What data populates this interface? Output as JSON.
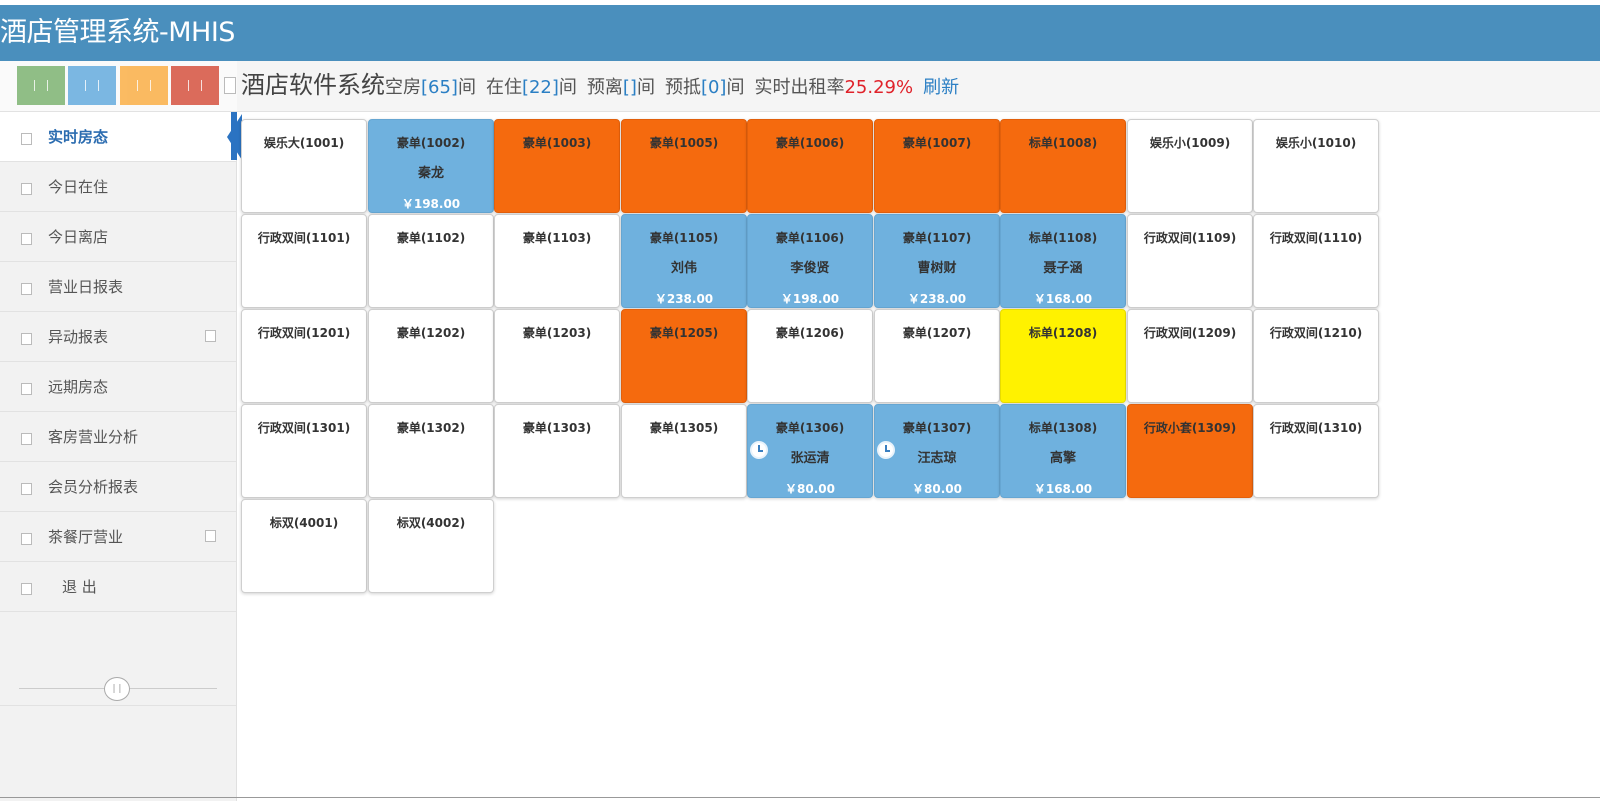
{
  "header": {
    "title": "酒店管理系统-MHIS"
  },
  "shortcuts": [
    {
      "color": "#85b87a",
      "icon": "pause-icon"
    },
    {
      "color": "#6eb0e0",
      "icon": "pause-icon"
    },
    {
      "color": "#fbb451",
      "icon": "pause-icon"
    },
    {
      "color": "#d85c4a",
      "icon": "pause-icon"
    }
  ],
  "nav": {
    "items": [
      {
        "label": "实时房态",
        "active": true,
        "sub": false
      },
      {
        "label": "今日在住",
        "active": false,
        "sub": false
      },
      {
        "label": "今日离店",
        "active": false,
        "sub": false
      },
      {
        "label": "营业日报表",
        "active": false,
        "sub": false
      },
      {
        "label": "异动报表",
        "active": false,
        "sub": true
      },
      {
        "label": "远期房态",
        "active": false,
        "sub": false
      },
      {
        "label": "客房营业分析",
        "active": false,
        "sub": false
      },
      {
        "label": "会员分析报表",
        "active": false,
        "sub": false
      },
      {
        "label": "茶餐厅营业",
        "active": false,
        "sub": true
      },
      {
        "label": "退 出",
        "active": false,
        "sub": false
      }
    ]
  },
  "status": {
    "system_name": "酒店软件系统",
    "vacant_label": "空房",
    "vacant_count": "[65]",
    "occupied_label": "在住",
    "occupied_count": "[22]",
    "departing_label": "预离",
    "departing_count": "[]",
    "arriving_label": "预抵",
    "arriving_count": "[0]",
    "unit": "间",
    "rate_label": "实时出租率",
    "rate_value": "25.29%",
    "refresh_label": "刷新"
  },
  "rooms": [
    [
      {
        "name": "娱乐大(1001)",
        "state": "vacant"
      },
      {
        "name": "豪单(1002)",
        "state": "occupied",
        "guest": "秦龙",
        "price": "￥198.00"
      },
      {
        "name": "豪单(1003)",
        "state": "orange"
      },
      {
        "name": "豪单(1005)",
        "state": "orange"
      },
      {
        "name": "豪单(1006)",
        "state": "orange"
      },
      {
        "name": "豪单(1007)",
        "state": "orange"
      },
      {
        "name": "标单(1008)",
        "state": "orange"
      },
      {
        "name": "娱乐小(1009)",
        "state": "vacant"
      },
      {
        "name": "娱乐小(1010)",
        "state": "vacant"
      }
    ],
    [
      {
        "name": "行政双间(1101)",
        "state": "vacant"
      },
      {
        "name": "豪单(1102)",
        "state": "vacant"
      },
      {
        "name": "豪单(1103)",
        "state": "vacant"
      },
      {
        "name": "豪单(1105)",
        "state": "occupied",
        "guest": "刘伟",
        "price": "￥238.00"
      },
      {
        "name": "豪单(1106)",
        "state": "occupied",
        "guest": "李俊贤",
        "price": "￥198.00"
      },
      {
        "name": "豪单(1107)",
        "state": "occupied",
        "guest": "曹树财",
        "price": "￥238.00"
      },
      {
        "name": "标单(1108)",
        "state": "occupied",
        "guest": "聂子涵",
        "price": "￥168.00"
      },
      {
        "name": "行政双间(1109)",
        "state": "vacant"
      },
      {
        "name": "行政双间(1110)",
        "state": "vacant"
      }
    ],
    [
      {
        "name": "行政双间(1201)",
        "state": "vacant"
      },
      {
        "name": "豪单(1202)",
        "state": "vacant"
      },
      {
        "name": "豪单(1203)",
        "state": "vacant"
      },
      {
        "name": "豪单(1205)",
        "state": "orange"
      },
      {
        "name": "豪单(1206)",
        "state": "vacant"
      },
      {
        "name": "豪单(1207)",
        "state": "vacant"
      },
      {
        "name": "标单(1208)",
        "state": "yellow"
      },
      {
        "name": "行政双间(1209)",
        "state": "vacant"
      },
      {
        "name": "行政双间(1210)",
        "state": "vacant"
      }
    ],
    [
      {
        "name": "行政双间(1301)",
        "state": "vacant"
      },
      {
        "name": "豪单(1302)",
        "state": "vacant"
      },
      {
        "name": "豪单(1303)",
        "state": "vacant"
      },
      {
        "name": "豪单(1305)",
        "state": "vacant"
      },
      {
        "name": "豪单(1306)",
        "state": "occupied",
        "guest": "张运清",
        "price": "￥80.00",
        "clock": true
      },
      {
        "name": "豪单(1307)",
        "state": "occupied",
        "guest": "汪志琼",
        "price": "￥80.00",
        "clock": true
      },
      {
        "name": "标单(1308)",
        "state": "occupied",
        "guest": "高擎",
        "price": "￥168.00"
      },
      {
        "name": "行政小套(1309)",
        "state": "orange"
      },
      {
        "name": "行政双间(1310)",
        "state": "vacant"
      }
    ],
    [
      {
        "name": "标双(4001)",
        "state": "vacant"
      },
      {
        "name": "标双(4002)",
        "state": "vacant"
      }
    ]
  ]
}
